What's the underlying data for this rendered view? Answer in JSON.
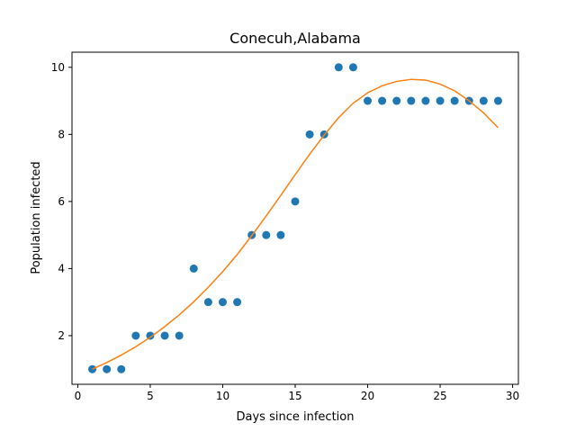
{
  "chart_data": {
    "type": "scatter",
    "title": "Conecuh,Alabama",
    "xlabel": "Days since infection",
    "ylabel": "Population infected",
    "xlim": [
      -0.4,
      30.4
    ],
    "ylim": [
      0.55,
      10.45
    ],
    "xticks": [
      0,
      5,
      10,
      15,
      20,
      25,
      30
    ],
    "yticks": [
      2,
      4,
      6,
      8,
      10
    ],
    "grid": false,
    "series": [
      {
        "kind": "points",
        "color": "#1f77b4",
        "x": [
          1,
          2,
          3,
          4,
          5,
          6,
          7,
          8,
          9,
          10,
          11,
          12,
          13,
          14,
          15,
          16,
          17,
          18,
          19,
          20,
          21,
          22,
          23,
          24,
          25,
          26,
          27,
          28,
          29
        ],
        "y": [
          1,
          1,
          1,
          2,
          2,
          2,
          2,
          4,
          3,
          3,
          3,
          5,
          5,
          5,
          6,
          8,
          8,
          10,
          10,
          9,
          9,
          9,
          9,
          9,
          9,
          9,
          9,
          9,
          9
        ]
      },
      {
        "kind": "line",
        "color": "#ff7f0e",
        "x": [
          1,
          2,
          3,
          4,
          5,
          6,
          7,
          8,
          9,
          10,
          11,
          12,
          13,
          14,
          15,
          16,
          17,
          18,
          19,
          20,
          21,
          22,
          23,
          24,
          25,
          26,
          27,
          28,
          29
        ],
        "y": [
          1.0,
          1.2,
          1.42,
          1.67,
          1.95,
          2.27,
          2.62,
          3.01,
          3.44,
          3.91,
          4.42,
          4.98,
          5.57,
          6.18,
          6.8,
          7.41,
          7.98,
          8.5,
          8.93,
          9.24,
          9.45,
          9.58,
          9.64,
          9.62,
          9.5,
          9.3,
          9.0,
          8.64,
          8.2
        ]
      }
    ]
  }
}
